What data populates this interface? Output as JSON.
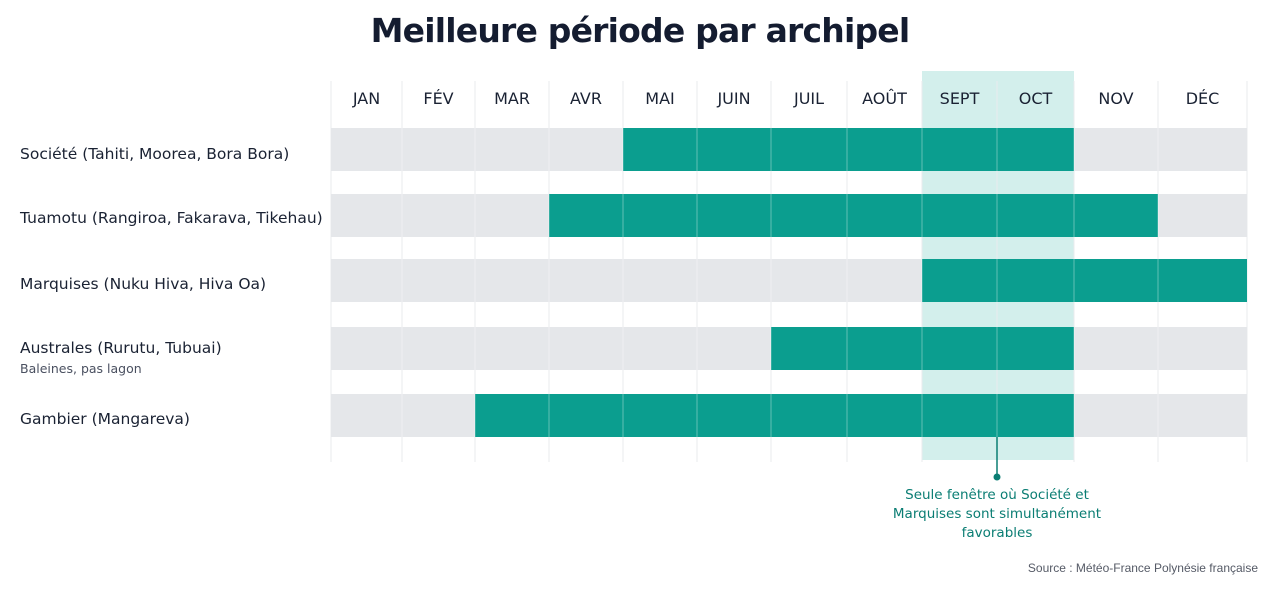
{
  "chart_data": {
    "type": "bar",
    "title": "Meilleure période par archipel",
    "months": [
      "JAN",
      "FÉV",
      "MAR",
      "AVR",
      "MAI",
      "JUIN",
      "JUIL",
      "AOÛT",
      "SEPT",
      "OCT",
      "NOV",
      "DÉC"
    ],
    "rows": [
      {
        "label": "Société (Tahiti, Moorea, Bora Bora)",
        "sublabel": "",
        "start": "MAI",
        "end": "OCT"
      },
      {
        "label": "Tuamotu (Rangiroa, Fakarava, Tikehau)",
        "sublabel": "",
        "start": "AVR",
        "end": "NOV"
      },
      {
        "label": "Marquises (Nuku Hiva, Hiva Oa)",
        "sublabel": "",
        "start": "SEPT",
        "end": "DÉC"
      },
      {
        "label": "Australes (Rurutu, Tubuai)",
        "sublabel": "Baleines, pas lagon",
        "start": "JUIL",
        "end": "OCT"
      },
      {
        "label": "Gambier (Mangareva)",
        "sublabel": "",
        "start": "MAR",
        "end": "OCT"
      }
    ],
    "highlight": {
      "start": "SEPT",
      "end": "OCT"
    },
    "annotation": [
      "Seule fenêtre où Société et",
      "Marquises sont simultanément",
      "favorables"
    ],
    "source": "Source : Météo-France Polynésie française",
    "colors": {
      "bar": "#0b9e8f",
      "track": "#e5e7ea",
      "highlight": "#d3efec",
      "note": "#0a7d73"
    }
  }
}
